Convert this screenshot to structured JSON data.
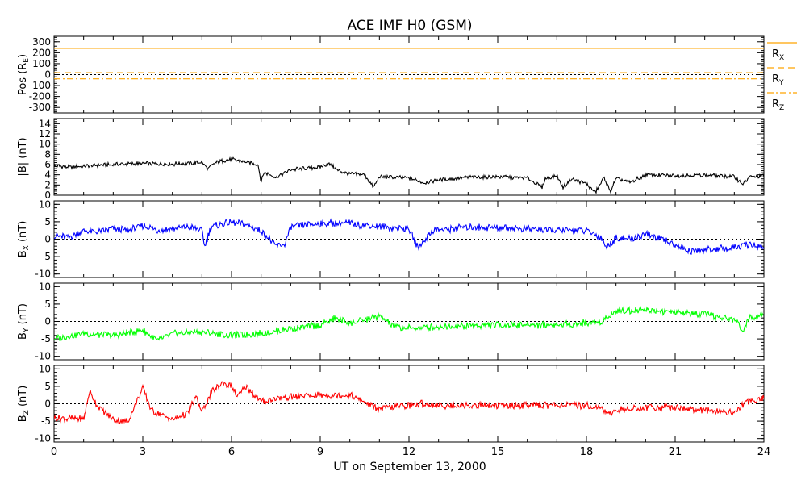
{
  "chart_data": {
    "type": "line",
    "title": "ACE IMF H0 (GSM)",
    "xlabel": "UT on September 13, 2000",
    "xlim": [
      0,
      24
    ],
    "x_ticks": [
      "0",
      "3",
      "6",
      "9",
      "12",
      "15",
      "18",
      "21",
      "24"
    ],
    "panels": [
      {
        "id": "pos",
        "ylabel": {
          "main": "Pos (R",
          "sub": "E",
          "tail": ")"
        },
        "ylim": [
          -350,
          350
        ],
        "y_ticks": [
          -300,
          -200,
          -100,
          0,
          100,
          200,
          300
        ],
        "y_tick_labels": [
          "-300",
          "-200",
          "-100",
          "0",
          "100",
          "200",
          "300"
        ],
        "zero_line": true,
        "series": [
          {
            "name": {
              "main": "R",
              "sub": "X"
            },
            "color": "#FFA500",
            "dash": "none",
            "points": [
              [
                0,
                240
              ],
              [
                24,
                240
              ]
            ]
          },
          {
            "name": {
              "main": "R",
              "sub": "Y"
            },
            "color": "#FFA500",
            "dash": "8,5",
            "points": [
              [
                0,
                18
              ],
              [
                24,
                18
              ]
            ]
          },
          {
            "name": {
              "main": "R",
              "sub": "Z"
            },
            "color": "#FFA500",
            "dash": "8,3,2,3",
            "points": [
              [
                0,
                -38
              ],
              [
                24,
                -38
              ]
            ]
          }
        ]
      },
      {
        "id": "btot",
        "ylabel": {
          "main": "|B| (nT)",
          "sub": "",
          "tail": ""
        },
        "ylim": [
          0,
          15
        ],
        "y_ticks": [
          0,
          2,
          4,
          6,
          8,
          10,
          12,
          14
        ],
        "y_tick_labels": [
          "0",
          "2",
          "4",
          "6",
          "8",
          "10",
          "12",
          "14"
        ],
        "zero_line": false,
        "series": [
          {
            "name": null,
            "color": "#000000",
            "dash": "none",
            "points": [
              [
                0,
                5.8
              ],
              [
                0.5,
                5.5
              ],
              [
                1,
                5.7
              ],
              [
                2,
                6.0
              ],
              [
                3,
                6.2
              ],
              [
                4,
                6.1
              ],
              [
                5,
                6.4
              ],
              [
                5.2,
                5.2
              ],
              [
                5.5,
                6.5
              ],
              [
                6,
                7.0
              ],
              [
                6.5,
                6.5
              ],
              [
                6.9,
                6.0
              ],
              [
                7.0,
                2.5
              ],
              [
                7.1,
                4.5
              ],
              [
                7.5,
                3.5
              ],
              [
                8,
                5.0
              ],
              [
                9,
                5.5
              ],
              [
                9.3,
                6.2
              ],
              [
                9.6,
                4.8
              ],
              [
                10,
                4.2
              ],
              [
                10.5,
                4.0
              ],
              [
                10.8,
                1.5
              ],
              [
                11,
                3.6
              ],
              [
                12,
                3.4
              ],
              [
                12.5,
                2.4
              ],
              [
                13,
                3.0
              ],
              [
                14,
                3.5
              ],
              [
                15,
                3.6
              ],
              [
                16,
                3.4
              ],
              [
                16.5,
                1.5
              ],
              [
                16.6,
                3.2
              ],
              [
                17,
                3.8
              ],
              [
                17.2,
                1.5
              ],
              [
                17.5,
                3.2
              ],
              [
                18,
                2.2
              ],
              [
                18.3,
                0.5
              ],
              [
                18.6,
                3.5
              ],
              [
                18.8,
                0.6
              ],
              [
                19,
                3.2
              ],
              [
                19.5,
                2.5
              ],
              [
                20,
                4.0
              ],
              [
                21,
                3.8
              ],
              [
                22,
                4.0
              ],
              [
                23,
                3.6
              ],
              [
                23.3,
                2.2
              ],
              [
                23.5,
                3.5
              ],
              [
                24,
                3.8
              ]
            ]
          }
        ]
      },
      {
        "id": "bx",
        "ylabel": {
          "main": "B",
          "sub": "X",
          "tail": " (nT)"
        },
        "ylim": [
          -11,
          11
        ],
        "y_ticks": [
          -10,
          -5,
          0,
          5,
          10
        ],
        "y_tick_labels": [
          "-10",
          "-5",
          "0",
          "5",
          "10"
        ],
        "zero_line": true,
        "series": [
          {
            "name": null,
            "color": "#0000FF",
            "dash": "none",
            "points": [
              [
                0,
                1.0
              ],
              [
                0.5,
                0.5
              ],
              [
                1,
                2.5
              ],
              [
                1.5,
                2.0
              ],
              [
                2,
                3.0
              ],
              [
                2.5,
                2.5
              ],
              [
                3,
                4.0
              ],
              [
                3.5,
                2.5
              ],
              [
                4,
                3.0
              ],
              [
                4.5,
                3.5
              ],
              [
                5,
                2.5
              ],
              [
                5.1,
                -2.0
              ],
              [
                5.3,
                3.5
              ],
              [
                6,
                5.0
              ],
              [
                6.5,
                4.0
              ],
              [
                7,
                2.5
              ],
              [
                7.3,
                0.0
              ],
              [
                7.5,
                -2.0
              ],
              [
                7.8,
                -1.5
              ],
              [
                8,
                3.5
              ],
              [
                9,
                4.5
              ],
              [
                10,
                4.5
              ],
              [
                11,
                3.5
              ],
              [
                12,
                3.0
              ],
              [
                12.3,
                -2.5
              ],
              [
                12.5,
                -0.5
              ],
              [
                12.8,
                2.5
              ],
              [
                14,
                3.5
              ],
              [
                16,
                3.0
              ],
              [
                17,
                2.5
              ],
              [
                18,
                2.5
              ],
              [
                18.5,
                0.5
              ],
              [
                18.7,
                -2.5
              ],
              [
                19,
                0.5
              ],
              [
                19.5,
                0.0
              ],
              [
                20,
                1.5
              ],
              [
                20.5,
                0.0
              ],
              [
                21,
                -1.5
              ],
              [
                21.5,
                -3.5
              ],
              [
                22,
                -3.0
              ],
              [
                23,
                -2.5
              ],
              [
                23.5,
                -1.5
              ],
              [
                24,
                -2.5
              ]
            ]
          }
        ]
      },
      {
        "id": "by",
        "ylabel": {
          "main": "B",
          "sub": "Y",
          "tail": " (nT)"
        },
        "ylim": [
          -11,
          11
        ],
        "y_ticks": [
          -10,
          -5,
          0,
          5,
          10
        ],
        "y_tick_labels": [
          "-10",
          "-5",
          "0",
          "5",
          "10"
        ],
        "zero_line": true,
        "series": [
          {
            "name": null,
            "color": "#00FF00",
            "dash": "none",
            "points": [
              [
                0,
                -5.0
              ],
              [
                1,
                -3.5
              ],
              [
                2,
                -4.0
              ],
              [
                3,
                -2.5
              ],
              [
                3.5,
                -5.5
              ],
              [
                4,
                -3.5
              ],
              [
                5,
                -3.0
              ],
              [
                6,
                -4.0
              ],
              [
                7,
                -3.5
              ],
              [
                8,
                -2.0
              ],
              [
                9,
                -1.0
              ],
              [
                9.5,
                1.0
              ],
              [
                10,
                -0.5
              ],
              [
                10.5,
                0.5
              ],
              [
                11,
                1.5
              ],
              [
                11.5,
                -1.5
              ],
              [
                12,
                -2.0
              ],
              [
                13,
                -1.5
              ],
              [
                15,
                -1.0
              ],
              [
                17,
                -1.0
              ],
              [
                18,
                -0.5
              ],
              [
                18.5,
                0.0
              ],
              [
                19,
                3.0
              ],
              [
                20,
                3.5
              ],
              [
                21,
                2.5
              ],
              [
                22,
                2.0
              ],
              [
                23,
                0.5
              ],
              [
                23.3,
                -2.5
              ],
              [
                23.5,
                1.0
              ],
              [
                24,
                2.5
              ]
            ]
          }
        ]
      },
      {
        "id": "bz",
        "ylabel": {
          "main": "B",
          "sub": "Z",
          "tail": " (nT)"
        },
        "ylim": [
          -11,
          11
        ],
        "y_ticks": [
          -10,
          -5,
          0,
          5,
          10
        ],
        "y_tick_labels": [
          "-10",
          "-5",
          "0",
          "5",
          "10"
        ],
        "zero_line": true,
        "series": [
          {
            "name": null,
            "color": "#FF0000",
            "dash": "none",
            "points": [
              [
                0,
                -4.0
              ],
              [
                1,
                -4.5
              ],
              [
                1.2,
                3.5
              ],
              [
                1.5,
                -1.0
              ],
              [
                2,
                -4.5
              ],
              [
                2.5,
                -5.0
              ],
              [
                3,
                4.5
              ],
              [
                3.3,
                -2.0
              ],
              [
                4,
                -4.5
              ],
              [
                4.5,
                -3.0
              ],
              [
                4.8,
                2.0
              ],
              [
                5,
                -2.5
              ],
              [
                5.3,
                3.0
              ],
              [
                5.7,
                6.0
              ],
              [
                6,
                5.0
              ],
              [
                6.2,
                2.0
              ],
              [
                6.5,
                5.0
              ],
              [
                7,
                0.5
              ],
              [
                7.5,
                1.5
              ],
              [
                8,
                2.0
              ],
              [
                9,
                2.5
              ],
              [
                10,
                2.5
              ],
              [
                10.5,
                0.5
              ],
              [
                11,
                -1.5
              ],
              [
                12,
                -0.5
              ],
              [
                12.5,
                0.0
              ],
              [
                13,
                -0.5
              ],
              [
                15,
                -0.5
              ],
              [
                17,
                -0.3
              ],
              [
                18,
                -0.5
              ],
              [
                18.5,
                -1.0
              ],
              [
                18.7,
                -3.0
              ],
              [
                19,
                -2.0
              ],
              [
                20,
                -1.0
              ],
              [
                21,
                -1.0
              ],
              [
                22,
                -2.0
              ],
              [
                23,
                -2.5
              ],
              [
                23.5,
                1.0
              ],
              [
                24,
                1.5
              ]
            ]
          }
        ]
      }
    ]
  }
}
